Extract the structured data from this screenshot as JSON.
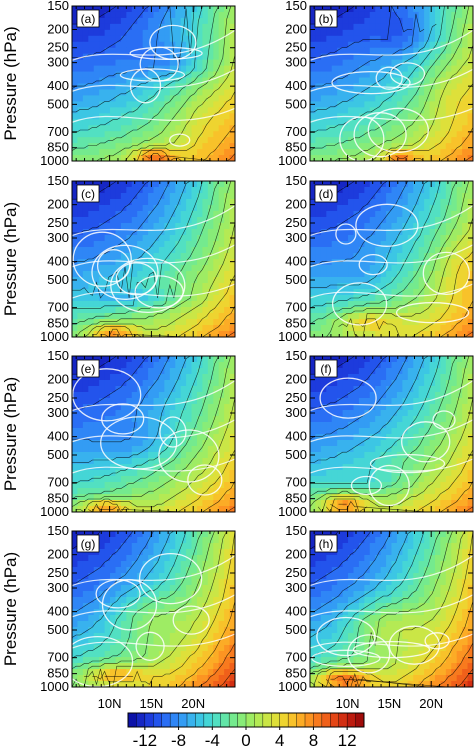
{
  "chart_data": {
    "type": "heatmap",
    "layout": "4 rows x 2 columns of latitude-pressure cross sections with white overlay contours",
    "ylabel": "Pressure (hPa)",
    "y_ticks": [
      150,
      200,
      250,
      300,
      400,
      500,
      700,
      850,
      1000
    ],
    "y_scale": "log",
    "ylim": [
      1000,
      150
    ],
    "x_ticks": [
      "10N",
      "15N",
      "20N"
    ],
    "x_tick_values": [
      10,
      15,
      20
    ],
    "xlim": [
      5.5,
      25
    ],
    "colorbar": {
      "tick_labels": [
        "-12",
        "-8",
        "-4",
        "0",
        "4",
        "8",
        "12"
      ],
      "range": [
        -14,
        14
      ],
      "interval": 1,
      "colors": [
        "#0c12a8",
        "#1626c4",
        "#1d3bdc",
        "#2354ec",
        "#2a6ef4",
        "#2f86f6",
        "#339cf4",
        "#38b2ee",
        "#3cc6e4",
        "#45d6d6",
        "#52e0c2",
        "#62e6a8",
        "#74ea8e",
        "#88ec78",
        "#9eec64",
        "#b4ea54",
        "#cae646",
        "#dee03a",
        "#eed430",
        "#f8c22a",
        "#fcac26",
        "#fc9422",
        "#f87a1e",
        "#f0601a",
        "#e44616",
        "#d22e12",
        "#bc1a0e",
        "#a00c0a"
      ]
    },
    "panels": [
      {
        "label": "(a)"
      },
      {
        "label": "(b)"
      },
      {
        "label": "(c)"
      },
      {
        "label": "(d)"
      },
      {
        "label": "(e)"
      },
      {
        "label": "(f)"
      },
      {
        "label": "(g)"
      },
      {
        "label": "(h)"
      }
    ]
  }
}
